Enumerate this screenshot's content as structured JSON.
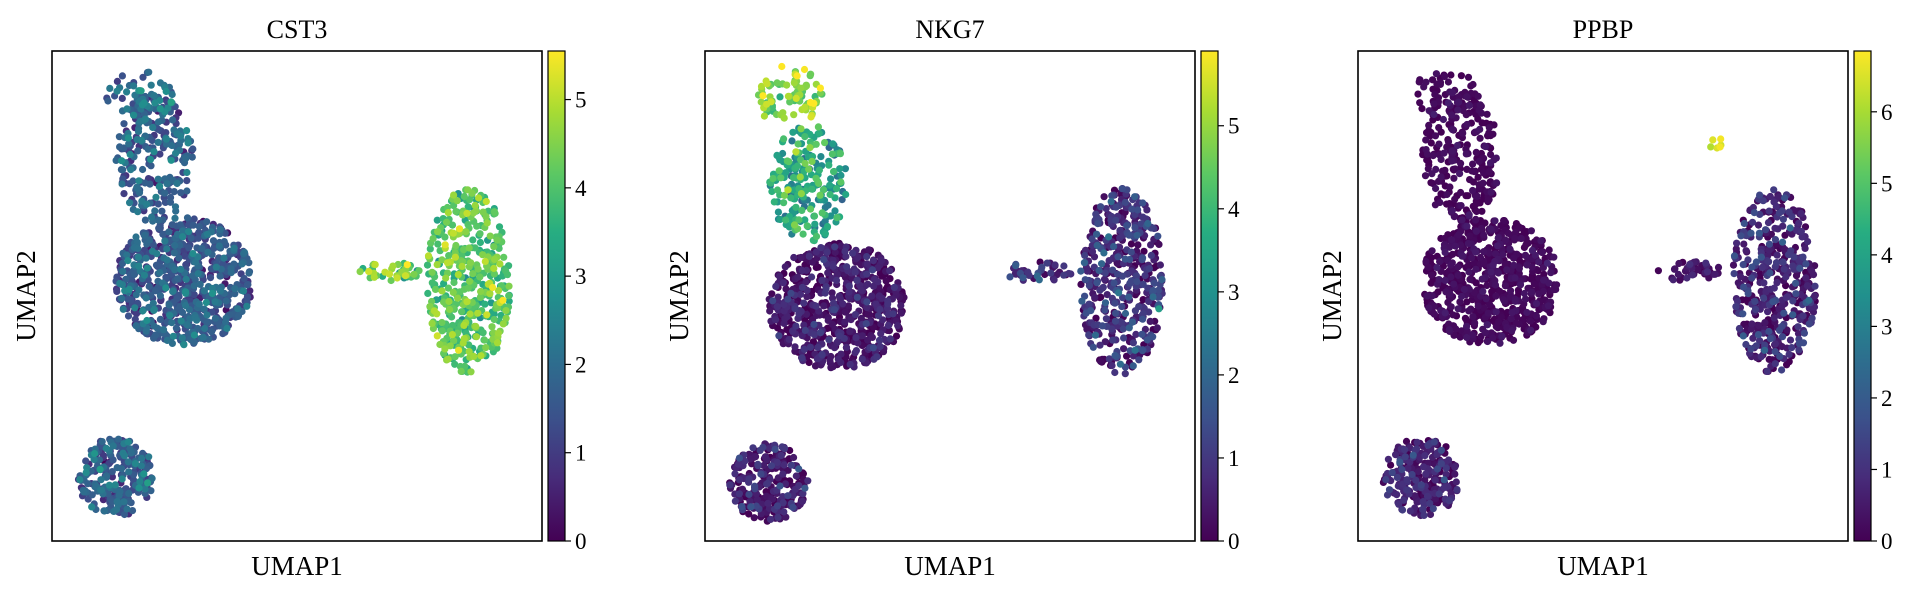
{
  "chart_data": [
    {
      "type": "scatter",
      "title": "CST3",
      "xlabel": "UMAP1",
      "ylabel": "UMAP2",
      "colormap": "viridis",
      "colorbar": {
        "min": 0,
        "max": 5.55,
        "ticks": [
          0,
          1,
          2,
          3,
          4,
          5
        ],
        "tick_labels": [
          "0",
          "1",
          "2",
          "3",
          "4",
          "5"
        ]
      },
      "clusters": [
        {
          "name": "upper-left-main",
          "cx": 0.27,
          "cy": 0.47,
          "rx": 0.14,
          "ry": 0.13,
          "n": 700,
          "mean": 1.5,
          "sd": 0.5
        },
        {
          "name": "upper-left-stem",
          "cx": 0.21,
          "cy": 0.22,
          "rx": 0.08,
          "ry": 0.13,
          "n": 230,
          "mean": 1.7,
          "sd": 0.55
        },
        {
          "name": "upper-left-top",
          "cx": 0.18,
          "cy": 0.09,
          "rx": 0.07,
          "ry": 0.05,
          "n": 60,
          "mean": 2.0,
          "sd": 0.6
        },
        {
          "name": "right-cluster",
          "cx": 0.85,
          "cy": 0.47,
          "rx": 0.085,
          "ry": 0.19,
          "n": 460,
          "mean": 4.0,
          "sd": 0.5
        },
        {
          "name": "right-tail",
          "cx": 0.69,
          "cy": 0.45,
          "rx": 0.07,
          "ry": 0.02,
          "n": 40,
          "mean": 4.3,
          "sd": 0.6
        },
        {
          "name": "bottom-left",
          "cx": 0.13,
          "cy": 0.87,
          "rx": 0.08,
          "ry": 0.08,
          "n": 250,
          "mean": 1.6,
          "sd": 0.55
        }
      ]
    },
    {
      "type": "scatter",
      "title": "NKG7",
      "xlabel": "UMAP1",
      "ylabel": "UMAP2",
      "colormap": "viridis",
      "colorbar": {
        "min": 0,
        "max": 5.9,
        "ticks": [
          0,
          1,
          2,
          3,
          4,
          5
        ],
        "tick_labels": [
          "0",
          "1",
          "2",
          "3",
          "4",
          "5"
        ]
      },
      "clusters": [
        {
          "name": "upper-left-main",
          "cx": 0.27,
          "cy": 0.52,
          "rx": 0.14,
          "ry": 0.13,
          "n": 700,
          "mean": 0.3,
          "sd": 0.4
        },
        {
          "name": "upper-left-stem",
          "cx": 0.21,
          "cy": 0.27,
          "rx": 0.08,
          "ry": 0.12,
          "n": 230,
          "mean": 3.5,
          "sd": 0.8
        },
        {
          "name": "upper-left-top",
          "cx": 0.17,
          "cy": 0.09,
          "rx": 0.07,
          "ry": 0.06,
          "n": 80,
          "mean": 4.8,
          "sd": 0.6
        },
        {
          "name": "right-cluster",
          "cx": 0.85,
          "cy": 0.47,
          "rx": 0.085,
          "ry": 0.19,
          "n": 460,
          "mean": 0.7,
          "sd": 0.6
        },
        {
          "name": "right-tail",
          "cx": 0.68,
          "cy": 0.45,
          "rx": 0.07,
          "ry": 0.02,
          "n": 40,
          "mean": 0.8,
          "sd": 0.5
        },
        {
          "name": "bottom-left",
          "cx": 0.13,
          "cy": 0.88,
          "rx": 0.08,
          "ry": 0.08,
          "n": 250,
          "mean": 0.4,
          "sd": 0.5
        }
      ]
    },
    {
      "type": "scatter",
      "title": "PPBP",
      "xlabel": "UMAP1",
      "ylabel": "UMAP2",
      "colormap": "viridis",
      "colorbar": {
        "min": 0,
        "max": 6.85,
        "ticks": [
          0,
          1,
          2,
          3,
          4,
          5,
          6
        ],
        "tick_labels": [
          "0",
          "1",
          "2",
          "3",
          "4",
          "5",
          "6"
        ]
      },
      "clusters": [
        {
          "name": "upper-left-main",
          "cx": 0.27,
          "cy": 0.47,
          "rx": 0.14,
          "ry": 0.13,
          "n": 700,
          "mean": 0.1,
          "sd": 0.2
        },
        {
          "name": "upper-left-stem",
          "cx": 0.21,
          "cy": 0.22,
          "rx": 0.08,
          "ry": 0.13,
          "n": 230,
          "mean": 0.1,
          "sd": 0.2
        },
        {
          "name": "upper-left-top",
          "cx": 0.18,
          "cy": 0.09,
          "rx": 0.07,
          "ry": 0.05,
          "n": 60,
          "mean": 0.1,
          "sd": 0.2
        },
        {
          "name": "right-cluster",
          "cx": 0.85,
          "cy": 0.47,
          "rx": 0.085,
          "ry": 0.19,
          "n": 460,
          "mean": 0.6,
          "sd": 0.6
        },
        {
          "name": "right-tail",
          "cx": 0.68,
          "cy": 0.45,
          "rx": 0.07,
          "ry": 0.02,
          "n": 40,
          "mean": 0.3,
          "sd": 0.3
        },
        {
          "name": "bottom-left",
          "cx": 0.13,
          "cy": 0.87,
          "rx": 0.08,
          "ry": 0.08,
          "n": 250,
          "mean": 0.5,
          "sd": 0.5
        }
      ],
      "highlight_points": {
        "cx": 0.73,
        "cy": 0.19,
        "rx": 0.012,
        "ry": 0.02,
        "n": 6,
        "mean": 6.5,
        "sd": 0.2
      }
    }
  ]
}
